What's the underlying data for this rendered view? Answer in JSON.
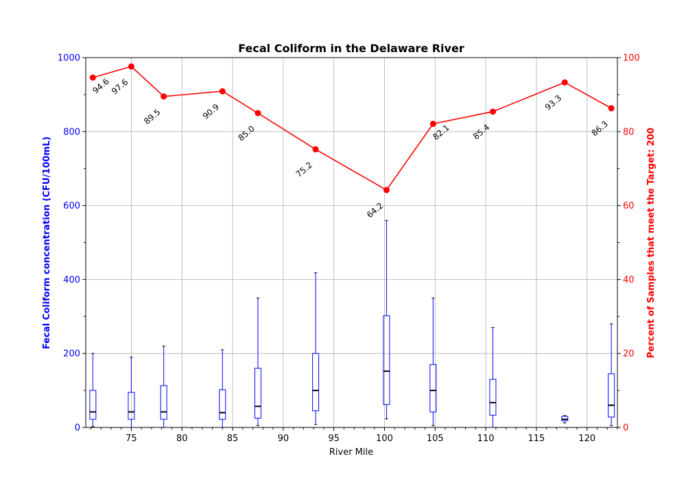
{
  "chart_data": {
    "type": "boxplot_with_line",
    "title": "Fecal Coliform in the Delaware River",
    "xlabel": "River Mile",
    "ylabel_left": "Fecal Coliform concentration (CFU/100mL)",
    "ylabel_right": "Percent of Samples that meet the Target: 200",
    "xlim": [
      70.5,
      123
    ],
    "ylim_left": [
      0,
      1000
    ],
    "ylim_right": [
      0,
      100
    ],
    "x_ticks": [
      75,
      80,
      85,
      90,
      95,
      100,
      105,
      110,
      115,
      120
    ],
    "y_left_ticks": [
      0,
      200,
      400,
      600,
      800,
      1000
    ],
    "y_right_ticks": [
      0,
      20,
      40,
      60,
      80,
      100
    ],
    "grid": true,
    "colors": {
      "boxes": "#0000ff",
      "median": "#000000",
      "line": "#ff0000",
      "grid": "#b0b0b0"
    },
    "boxes": [
      {
        "x": 71.2,
        "whislo": 2,
        "q1": 22,
        "med": 42,
        "q3": 100,
        "whishi": 200
      },
      {
        "x": 75.0,
        "whislo": 0,
        "q1": 22,
        "med": 42,
        "q3": 95,
        "whishi": 190
      },
      {
        "x": 78.2,
        "whislo": 0,
        "q1": 22,
        "med": 42,
        "q3": 113,
        "whishi": 220
      },
      {
        "x": 84.0,
        "whislo": 0,
        "q1": 22,
        "med": 40,
        "q3": 102,
        "whishi": 210
      },
      {
        "x": 87.5,
        "whislo": 5,
        "q1": 25,
        "med": 57,
        "q3": 160,
        "whishi": 350
      },
      {
        "x": 93.2,
        "whislo": 8,
        "q1": 45,
        "med": 100,
        "q3": 200,
        "whishi": 418
      },
      {
        "x": 100.2,
        "whislo": 23,
        "q1": 62,
        "med": 152,
        "q3": 302,
        "whishi": 560
      },
      {
        "x": 104.8,
        "whislo": 5,
        "q1": 42,
        "med": 100,
        "q3": 170,
        "whishi": 350
      },
      {
        "x": 110.7,
        "whislo": 0,
        "q1": 33,
        "med": 67,
        "q3": 130,
        "whishi": 270
      },
      {
        "x": 117.8,
        "whislo": 12,
        "q1": 18,
        "med": 22,
        "q3": 30,
        "whishi": 32
      },
      {
        "x": 122.4,
        "whislo": 5,
        "q1": 28,
        "med": 60,
        "q3": 145,
        "whishi": 280
      }
    ],
    "series": [
      {
        "name": "Percent meeting target",
        "axis": "right",
        "x": [
          71.2,
          75.0,
          78.2,
          84.0,
          87.5,
          93.2,
          100.2,
          104.8,
          110.7,
          117.8,
          122.4
        ],
        "values": [
          94.6,
          97.6,
          89.5,
          90.9,
          85.0,
          75.2,
          64.2,
          82.1,
          85.4,
          93.3,
          86.3
        ],
        "labels": [
          "94.6",
          "97.6",
          "89.5",
          "90.9",
          "85.0",
          "75.2",
          "64.2",
          "82.1",
          "85.4",
          "93.3",
          "86.3"
        ],
        "label_side": [
          "right",
          "left",
          "left",
          "left",
          "left",
          "left",
          "left",
          "right",
          "left",
          "left",
          "left"
        ]
      }
    ]
  }
}
